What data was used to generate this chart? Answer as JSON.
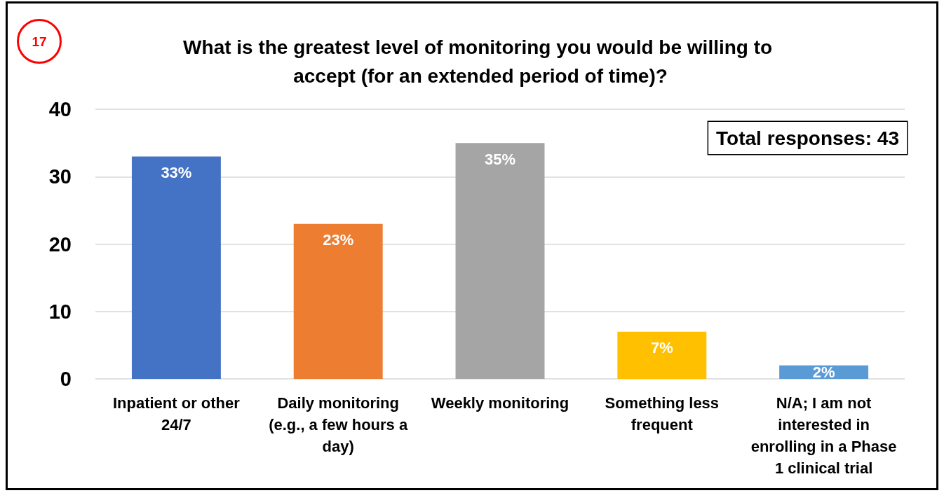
{
  "chart_data": {
    "type": "bar",
    "title": "What is the greatest level of monitoring you would be willing to accept (for an extended period of time)?",
    "categories": [
      "Inpatient or other 24/7",
      "Daily monitoring (e.g., a few hours a day)",
      "Weekly monitoring",
      "Something less frequent",
      "N/A; I am not interested in enrolling in a Phase 1 clinical trial"
    ],
    "values": [
      33,
      23,
      35,
      7,
      2
    ],
    "colors": [
      "#4472c4",
      "#ed7d31",
      "#a5a5a5",
      "#ffc000",
      "#5b9bd5"
    ],
    "value_labels": [
      "33%",
      "23%",
      "35%",
      "7%",
      "2%"
    ],
    "ylim": [
      0,
      40
    ],
    "yticks": [
      0,
      10,
      20,
      30,
      40
    ],
    "grid": "y",
    "annotations": [
      "17",
      "Total responses: 43"
    ]
  }
}
